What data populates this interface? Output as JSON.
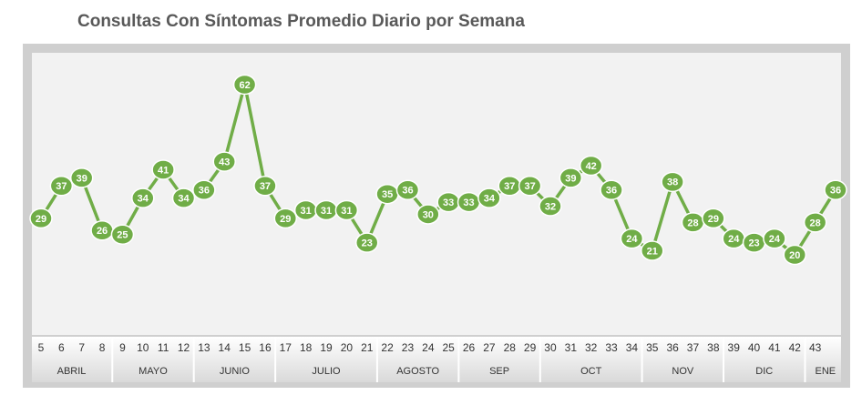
{
  "chart_data": {
    "type": "line",
    "title": "Consultas Con Síntomas Promedio Diario por Semana",
    "color": "#70ad47",
    "months": [
      {
        "name": "ABRIL",
        "weeks": [
          5,
          6,
          7,
          8
        ]
      },
      {
        "name": "MAYO",
        "weeks": [
          9,
          10,
          11,
          12
        ]
      },
      {
        "name": "JUNIO",
        "weeks": [
          13,
          14,
          15,
          16
        ]
      },
      {
        "name": "JULIO",
        "weeks": [
          17,
          18,
          19,
          20,
          21
        ]
      },
      {
        "name": "AGOSTO",
        "weeks": [
          22,
          23,
          24,
          25
        ]
      },
      {
        "name": "SEP",
        "weeks": [
          26,
          27,
          28,
          29
        ]
      },
      {
        "name": "OCT",
        "weeks": [
          30,
          31,
          32,
          33,
          34
        ]
      },
      {
        "name": "NOV",
        "weeks": [
          35,
          36,
          37,
          38
        ]
      },
      {
        "name": "DIC",
        "weeks": [
          39,
          40,
          41,
          42
        ]
      },
      {
        "name": "ENE",
        "weeks": [
          43,
          null
        ]
      }
    ],
    "values": [
      29,
      37,
      39,
      26,
      25,
      34,
      41,
      34,
      36,
      43,
      62,
      37,
      29,
      31,
      31,
      31,
      23,
      35,
      36,
      30,
      33,
      33,
      34,
      37,
      37,
      32,
      39,
      42,
      36,
      24,
      21,
      38,
      28,
      29,
      24,
      23,
      24,
      20,
      28,
      36
    ]
  }
}
